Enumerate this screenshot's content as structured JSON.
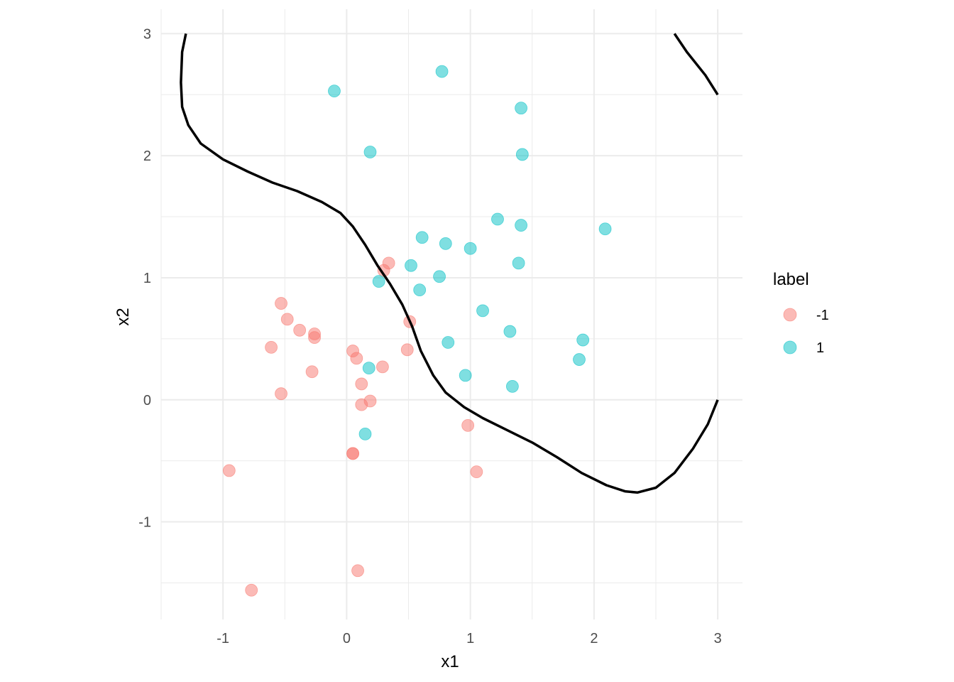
{
  "chart_data": {
    "type": "scatter",
    "title": "",
    "xlabel": "x1",
    "ylabel": "x2",
    "xlim": [
      -1.5,
      3.2
    ],
    "ylim": [
      -1.8,
      3.2
    ],
    "x_ticks": [
      -1,
      0,
      1,
      2,
      3
    ],
    "y_ticks": [
      -1,
      0,
      1,
      2,
      3
    ],
    "x_tick_labels": [
      "-1",
      "0",
      "1",
      "2",
      "3"
    ],
    "y_tick_labels": [
      "-1",
      "0",
      "1",
      "2",
      "3"
    ],
    "grid": true,
    "legend": {
      "title": "label",
      "position": "right",
      "entries": [
        {
          "label": "-1",
          "color": "#F8766D"
        },
        {
          "label": "1",
          "color": "#00BFC4"
        }
      ]
    },
    "series": [
      {
        "name": "-1",
        "color": "#F8766D",
        "points": [
          [
            0.34,
            1.12
          ],
          [
            0.3,
            1.06
          ],
          [
            -0.53,
            0.79
          ],
          [
            -0.48,
            0.66
          ],
          [
            -0.38,
            0.57
          ],
          [
            -0.26,
            0.54
          ],
          [
            -0.26,
            0.51
          ],
          [
            -0.61,
            0.43
          ],
          [
            0.51,
            0.64
          ],
          [
            0.49,
            0.41
          ],
          [
            0.05,
            0.4
          ],
          [
            0.08,
            0.34
          ],
          [
            0.29,
            0.27
          ],
          [
            -0.28,
            0.23
          ],
          [
            0.12,
            0.13
          ],
          [
            -0.53,
            0.05
          ],
          [
            0.19,
            -0.01
          ],
          [
            0.12,
            -0.04
          ],
          [
            0.98,
            -0.21
          ],
          [
            0.05,
            -0.44
          ],
          [
            0.05,
            -0.44
          ],
          [
            1.05,
            -0.59
          ],
          [
            -0.95,
            -0.58
          ],
          [
            0.09,
            -1.4
          ],
          [
            -0.77,
            -1.56
          ]
        ]
      },
      {
        "name": "1",
        "color": "#00BFC4",
        "points": [
          [
            0.77,
            2.69
          ],
          [
            -0.1,
            2.53
          ],
          [
            1.41,
            2.39
          ],
          [
            0.19,
            2.03
          ],
          [
            1.42,
            2.01
          ],
          [
            1.22,
            1.48
          ],
          [
            1.41,
            1.43
          ],
          [
            2.09,
            1.4
          ],
          [
            0.61,
            1.33
          ],
          [
            0.8,
            1.28
          ],
          [
            1.0,
            1.24
          ],
          [
            1.39,
            1.12
          ],
          [
            0.52,
            1.1
          ],
          [
            0.75,
            1.01
          ],
          [
            0.26,
            0.97
          ],
          [
            0.59,
            0.9
          ],
          [
            1.1,
            0.73
          ],
          [
            1.32,
            0.56
          ],
          [
            1.91,
            0.49
          ],
          [
            0.82,
            0.47
          ],
          [
            1.88,
            0.33
          ],
          [
            0.18,
            0.26
          ],
          [
            0.96,
            0.2
          ],
          [
            1.34,
            0.11
          ],
          [
            0.15,
            -0.28
          ]
        ]
      }
    ],
    "decision_boundary": [
      [
        [
          -1.3,
          3.0
        ],
        [
          -1.33,
          2.85
        ],
        [
          -1.34,
          2.6
        ],
        [
          -1.33,
          2.4
        ],
        [
          -1.28,
          2.25
        ],
        [
          -1.18,
          2.1
        ],
        [
          -1.0,
          1.97
        ],
        [
          -0.8,
          1.87
        ],
        [
          -0.6,
          1.78
        ],
        [
          -0.4,
          1.71
        ],
        [
          -0.2,
          1.62
        ],
        [
          -0.05,
          1.53
        ],
        [
          0.05,
          1.42
        ],
        [
          0.15,
          1.27
        ],
        [
          0.25,
          1.1
        ],
        [
          0.35,
          0.95
        ],
        [
          0.45,
          0.78
        ],
        [
          0.53,
          0.6
        ],
        [
          0.6,
          0.4
        ],
        [
          0.7,
          0.2
        ],
        [
          0.8,
          0.06
        ],
        [
          0.95,
          -0.06
        ],
        [
          1.1,
          -0.15
        ],
        [
          1.3,
          -0.25
        ],
        [
          1.5,
          -0.35
        ],
        [
          1.7,
          -0.47
        ],
        [
          1.9,
          -0.6
        ],
        [
          2.1,
          -0.7
        ],
        [
          2.25,
          -0.75
        ],
        [
          2.35,
          -0.76
        ],
        [
          2.5,
          -0.72
        ],
        [
          2.65,
          -0.6
        ],
        [
          2.8,
          -0.4
        ],
        [
          2.92,
          -0.2
        ],
        [
          3.0,
          0.0
        ]
      ],
      [
        [
          2.65,
          3.0
        ],
        [
          2.75,
          2.85
        ],
        [
          2.9,
          2.66
        ],
        [
          3.0,
          2.5
        ]
      ]
    ]
  }
}
